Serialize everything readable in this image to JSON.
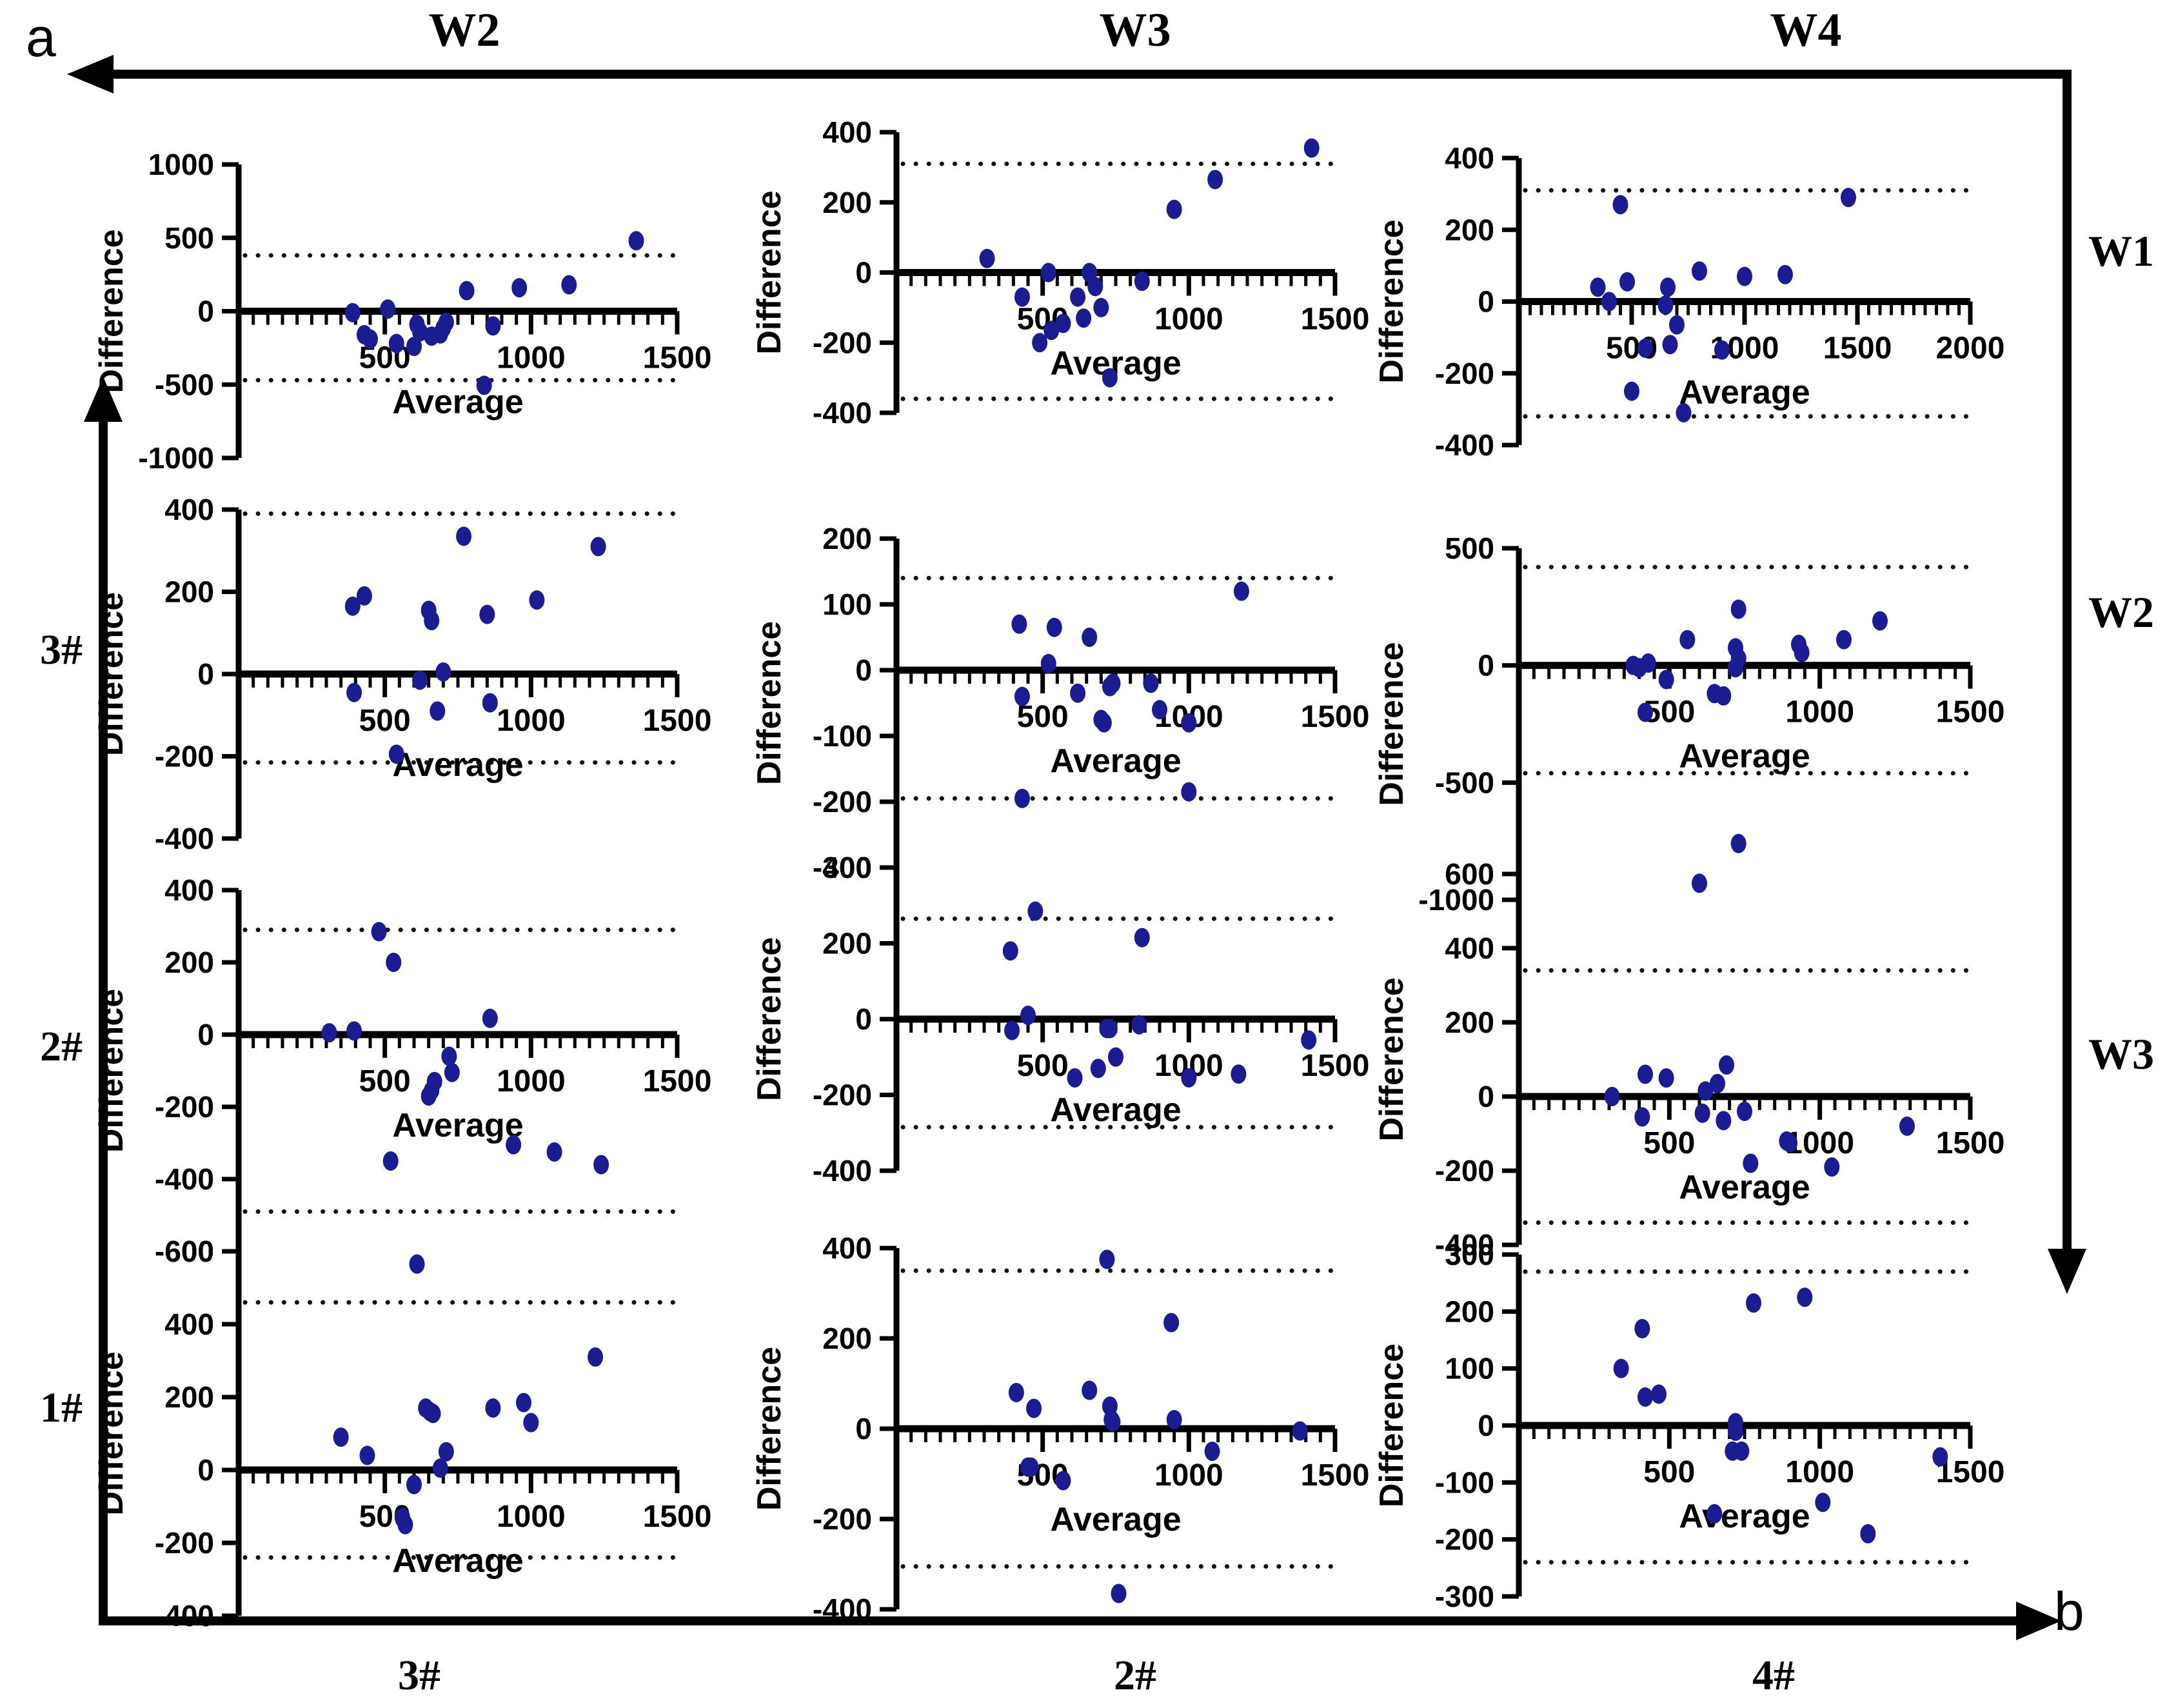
{
  "figure": {
    "corner_labels": {
      "a": "a",
      "b": "b"
    },
    "top_headers": [
      "W2",
      "W3",
      "W4"
    ],
    "right_labels": [
      "W1",
      "W2",
      "W3"
    ],
    "left_labels": [
      "3#",
      "2#",
      "1#"
    ],
    "bottom_labels": [
      "3#",
      "2#",
      "4#"
    ],
    "colors": {
      "point": "#1c1c92",
      "axis": "#000000",
      "loa_dotted": "#111111"
    }
  },
  "chart_data": [
    {
      "id": "row1-col1",
      "type": "scatter",
      "col_top": "W2",
      "row_right": "W1",
      "xlabel": "Average",
      "ylabel": "Difference",
      "xlim": [
        0,
        1500
      ],
      "xticks": [
        500,
        1000,
        1500
      ],
      "x_minor_step": 50,
      "ylim": [
        -1000,
        1000
      ],
      "yticks": [
        -1000,
        -500,
        0,
        500,
        1000
      ],
      "loa_upper": 380,
      "loa_lower": -470,
      "points": [
        [
          390,
          -10
        ],
        [
          430,
          -160
        ],
        [
          450,
          -190
        ],
        [
          510,
          15
        ],
        [
          540,
          -220
        ],
        [
          600,
          -240
        ],
        [
          610,
          -90
        ],
        [
          620,
          -140
        ],
        [
          660,
          -170
        ],
        [
          690,
          -155
        ],
        [
          700,
          -115
        ],
        [
          710,
          -75
        ],
        [
          780,
          140
        ],
        [
          840,
          -505
        ],
        [
          870,
          -100
        ],
        [
          960,
          160
        ],
        [
          1130,
          180
        ],
        [
          1360,
          480
        ]
      ]
    },
    {
      "id": "row1-col2",
      "type": "scatter",
      "col_top": "W3",
      "row_right": "W1",
      "xlabel": "Average",
      "ylabel": "Difference",
      "xlim": [
        0,
        1500
      ],
      "xticks": [
        500,
        1000,
        1500
      ],
      "x_minor_step": 50,
      "ylim": [
        -400,
        400
      ],
      "yticks": [
        -400,
        -200,
        0,
        200,
        400
      ],
      "loa_upper": 310,
      "loa_lower": -360,
      "points": [
        [
          310,
          40
        ],
        [
          430,
          -70
        ],
        [
          490,
          -200
        ],
        [
          520,
          0
        ],
        [
          530,
          -165
        ],
        [
          570,
          -145
        ],
        [
          620,
          -70
        ],
        [
          640,
          -130
        ],
        [
          660,
          0
        ],
        [
          680,
          -40
        ],
        [
          700,
          -100
        ],
        [
          730,
          -300
        ],
        [
          840,
          -25
        ],
        [
          950,
          180
        ],
        [
          1090,
          265
        ],
        [
          1420,
          355
        ]
      ]
    },
    {
      "id": "row1-col3",
      "type": "scatter",
      "col_top": "W4",
      "row_right": "W1",
      "xlabel": "Average",
      "ylabel": "Difference",
      "xlim": [
        0,
        2000
      ],
      "xticks": [
        500,
        1000,
        1500,
        2000
      ],
      "x_minor_step": 50,
      "ylim": [
        -400,
        400
      ],
      "yticks": [
        -400,
        -200,
        0,
        200,
        400
      ],
      "loa_upper": 310,
      "loa_lower": -320,
      "points": [
        [
          350,
          40
        ],
        [
          400,
          0
        ],
        [
          450,
          270
        ],
        [
          480,
          55
        ],
        [
          500,
          -250
        ],
        [
          560,
          -130
        ],
        [
          650,
          -10
        ],
        [
          660,
          40
        ],
        [
          670,
          -120
        ],
        [
          700,
          -65
        ],
        [
          730,
          -310
        ],
        [
          800,
          85
        ],
        [
          900,
          -135
        ],
        [
          1000,
          70
        ],
        [
          1180,
          75
        ],
        [
          1460,
          290
        ]
      ]
    },
    {
      "id": "row2-col1",
      "type": "scatter",
      "col_top": "W2",
      "row_right": "W2",
      "row_left": "3#",
      "xlabel": "Average",
      "ylabel": "Difference",
      "xlim": [
        0,
        1500
      ],
      "xticks": [
        500,
        1000,
        1500
      ],
      "x_minor_step": 50,
      "ylim": [
        -400,
        400
      ],
      "yticks": [
        -400,
        -200,
        0,
        200,
        400
      ],
      "loa_upper": 390,
      "loa_lower": -215,
      "points": [
        [
          390,
          165
        ],
        [
          395,
          -45
        ],
        [
          430,
          190
        ],
        [
          540,
          -195
        ],
        [
          620,
          -15
        ],
        [
          650,
          155
        ],
        [
          660,
          130
        ],
        [
          680,
          -90
        ],
        [
          700,
          5
        ],
        [
          770,
          335
        ],
        [
          850,
          145
        ],
        [
          860,
          -70
        ],
        [
          1020,
          180
        ],
        [
          1230,
          310
        ]
      ]
    },
    {
      "id": "row2-col2",
      "type": "scatter",
      "col_top": "W3",
      "row_right": "W2",
      "xlabel": "Average",
      "ylabel": "Difference",
      "xlim": [
        0,
        1500
      ],
      "xticks": [
        500,
        1000,
        1500
      ],
      "x_minor_step": 50,
      "ylim": [
        -300,
        200
      ],
      "yticks": [
        -300,
        -200,
        -100,
        0,
        100,
        200
      ],
      "loa_upper": 140,
      "loa_lower": -195,
      "points": [
        [
          420,
          70
        ],
        [
          430,
          -40
        ],
        [
          430,
          -195
        ],
        [
          520,
          10
        ],
        [
          540,
          65
        ],
        [
          620,
          -35
        ],
        [
          660,
          50
        ],
        [
          700,
          -75
        ],
        [
          710,
          -80
        ],
        [
          730,
          -25
        ],
        [
          740,
          -20
        ],
        [
          870,
          -20
        ],
        [
          900,
          -60
        ],
        [
          1000,
          -80
        ],
        [
          1000,
          -185
        ],
        [
          1180,
          120
        ]
      ]
    },
    {
      "id": "row2-col3",
      "type": "scatter",
      "col_top": "W4",
      "row_right": "W2",
      "xlabel": "Average",
      "ylabel": "Difference",
      "xlim": [
        0,
        1500
      ],
      "xticks": [
        500,
        1000,
        1500
      ],
      "x_minor_step": 50,
      "ylim": [
        -1000,
        500
      ],
      "yticks": [
        -1000,
        -500,
        0,
        500
      ],
      "loa_upper": 420,
      "loa_lower": -460,
      "points": [
        [
          380,
          0
        ],
        [
          400,
          -10
        ],
        [
          420,
          -200
        ],
        [
          430,
          10
        ],
        [
          490,
          -60
        ],
        [
          560,
          110
        ],
        [
          650,
          -120
        ],
        [
          680,
          -130
        ],
        [
          720,
          75
        ],
        [
          720,
          -10
        ],
        [
          730,
          240
        ],
        [
          730,
          30
        ],
        [
          730,
          -760
        ],
        [
          930,
          90
        ],
        [
          940,
          55
        ],
        [
          1080,
          110
        ],
        [
          1200,
          190
        ]
      ]
    },
    {
      "id": "row3-col1",
      "type": "scatter",
      "col_top": "W2",
      "row_right": "W3",
      "row_left": "2#",
      "xlabel": "Average",
      "ylabel": "Difference",
      "xlim": [
        0,
        1500
      ],
      "xticks": [
        500,
        1000,
        1500
      ],
      "x_minor_step": 50,
      "ylim": [
        -600,
        400
      ],
      "yticks": [
        -600,
        -400,
        -200,
        0,
        200,
        400
      ],
      "loa_upper": 290,
      "loa_lower": -490,
      "points": [
        [
          310,
          5
        ],
        [
          395,
          10
        ],
        [
          480,
          285
        ],
        [
          520,
          -350
        ],
        [
          530,
          200
        ],
        [
          650,
          -170
        ],
        [
          660,
          -155
        ],
        [
          670,
          -130
        ],
        [
          720,
          -60
        ],
        [
          730,
          -105
        ],
        [
          860,
          45
        ],
        [
          940,
          -305
        ],
        [
          1080,
          -325
        ],
        [
          1240,
          -360
        ]
      ]
    },
    {
      "id": "row3-col2",
      "type": "scatter",
      "col_top": "W3",
      "row_right": "W3",
      "xlabel": "Average",
      "ylabel": "Difference",
      "xlim": [
        0,
        1500
      ],
      "xticks": [
        500,
        1000,
        1500
      ],
      "x_minor_step": 50,
      "ylim": [
        -400,
        400
      ],
      "yticks": [
        -400,
        -200,
        0,
        200,
        400
      ],
      "loa_upper": 265,
      "loa_lower": -285,
      "points": [
        [
          390,
          180
        ],
        [
          395,
          -30
        ],
        [
          450,
          10
        ],
        [
          475,
          285
        ],
        [
          610,
          -155
        ],
        [
          690,
          -130
        ],
        [
          720,
          -25
        ],
        [
          730,
          -25
        ],
        [
          750,
          -100
        ],
        [
          830,
          -15
        ],
        [
          840,
          215
        ],
        [
          1000,
          -155
        ],
        [
          1170,
          -145
        ],
        [
          1410,
          -55
        ]
      ]
    },
    {
      "id": "row3-col3",
      "type": "scatter",
      "col_top": "W4",
      "row_right": "W3",
      "xlabel": "Average",
      "ylabel": "Difference",
      "xlim": [
        0,
        1500
      ],
      "xticks": [
        500,
        1000,
        1500
      ],
      "x_minor_step": 50,
      "ylim": [
        -400,
        600
      ],
      "yticks": [
        -400,
        -200,
        0,
        200,
        400,
        600
      ],
      "loa_upper": 340,
      "loa_lower": -340,
      "points": [
        [
          310,
          0
        ],
        [
          410,
          -55
        ],
        [
          420,
          60
        ],
        [
          490,
          50
        ],
        [
          600,
          575
        ],
        [
          610,
          -45
        ],
        [
          620,
          15
        ],
        [
          660,
          35
        ],
        [
          680,
          -65
        ],
        [
          690,
          85
        ],
        [
          750,
          -40
        ],
        [
          770,
          -180
        ],
        [
          890,
          -120
        ],
        [
          900,
          -125
        ],
        [
          1040,
          -190
        ],
        [
          1290,
          -80
        ]
      ]
    },
    {
      "id": "row4-col1",
      "type": "scatter",
      "col_bottom": "3#",
      "row_left": "1#",
      "xlabel": "Average",
      "ylabel": "Difference",
      "xlim": [
        0,
        1500
      ],
      "xticks": [
        500,
        1000,
        1500
      ],
      "x_minor_step": 50,
      "ylim": [
        -400,
        600
      ],
      "yticks": [
        -400,
        -200,
        0,
        200,
        400,
        600
      ],
      "loa_upper": 460,
      "loa_lower": -240,
      "points": [
        [
          350,
          90
        ],
        [
          440,
          40
        ],
        [
          560,
          -130
        ],
        [
          570,
          -150
        ],
        [
          600,
          -40
        ],
        [
          610,
          565
        ],
        [
          640,
          170
        ],
        [
          655,
          160
        ],
        [
          665,
          155
        ],
        [
          690,
          5
        ],
        [
          710,
          50
        ],
        [
          870,
          170
        ],
        [
          975,
          185
        ],
        [
          1000,
          130
        ],
        [
          1220,
          310
        ]
      ]
    },
    {
      "id": "row4-col2",
      "type": "scatter",
      "col_bottom": "2#",
      "xlabel": "Average",
      "ylabel": "Difference",
      "xlim": [
        0,
        1500
      ],
      "xticks": [
        500,
        1000,
        1500
      ],
      "x_minor_step": 50,
      "ylim": [
        -400,
        400
      ],
      "yticks": [
        -400,
        -200,
        0,
        200,
        400
      ],
      "loa_upper": 350,
      "loa_lower": -305,
      "points": [
        [
          410,
          80
        ],
        [
          450,
          -85
        ],
        [
          460,
          -85
        ],
        [
          470,
          45
        ],
        [
          570,
          -115
        ],
        [
          660,
          85
        ],
        [
          720,
          375
        ],
        [
          730,
          50
        ],
        [
          735,
          20
        ],
        [
          740,
          15
        ],
        [
          760,
          -365
        ],
        [
          940,
          235
        ],
        [
          950,
          20
        ],
        [
          1080,
          -50
        ],
        [
          1380,
          -5
        ]
      ]
    },
    {
      "id": "row4-col3",
      "type": "scatter",
      "col_bottom": "4#",
      "xlabel": "Average",
      "ylabel": "Difference",
      "xlim": [
        0,
        1500
      ],
      "xticks": [
        500,
        1000,
        1500
      ],
      "x_minor_step": 50,
      "ylim": [
        -300,
        300
      ],
      "yticks": [
        -300,
        -200,
        -100,
        0,
        100,
        200,
        300
      ],
      "loa_upper": 270,
      "loa_lower": -240,
      "points": [
        [
          340,
          100
        ],
        [
          410,
          170
        ],
        [
          420,
          50
        ],
        [
          465,
          55
        ],
        [
          650,
          -155
        ],
        [
          710,
          -45
        ],
        [
          720,
          5
        ],
        [
          720,
          -10
        ],
        [
          740,
          -45
        ],
        [
          780,
          215
        ],
        [
          950,
          225
        ],
        [
          1010,
          -135
        ],
        [
          1160,
          -190
        ],
        [
          1400,
          -55
        ]
      ]
    }
  ]
}
